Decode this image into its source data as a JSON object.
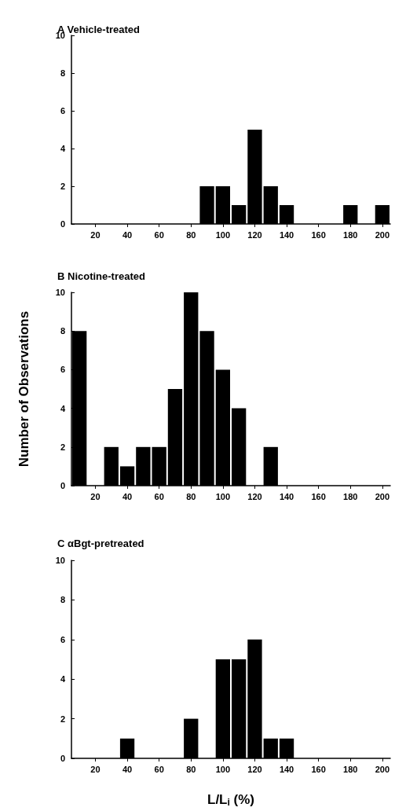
{
  "chart_data": [
    {
      "type": "histogram",
      "title": "A Vehicle-treated",
      "bins": [
        5,
        15,
        25,
        35,
        45,
        55,
        65,
        75,
        85,
        95,
        105,
        115,
        125,
        135,
        145,
        155,
        165,
        175,
        185,
        195,
        205
      ],
      "values": [
        0,
        0,
        0,
        0,
        0,
        0,
        0,
        0,
        2,
        2,
        1,
        5,
        2,
        1,
        0,
        0,
        0,
        1,
        0,
        1
      ],
      "color": "#000000",
      "xlim": [
        5,
        205
      ],
      "xticks": [
        20,
        40,
        60,
        80,
        100,
        120,
        140,
        160,
        180,
        200
      ],
      "ylim": [
        0,
        10
      ],
      "yticks": [
        0,
        2,
        4,
        6,
        8,
        10
      ],
      "grid": false
    },
    {
      "type": "histogram",
      "title": "B Nicotine-treated",
      "ylabel": "Number of Observations",
      "bins": [
        5,
        15,
        25,
        35,
        45,
        55,
        65,
        75,
        85,
        95,
        105,
        115,
        125,
        135,
        145,
        155,
        165,
        175,
        185,
        195,
        205
      ],
      "values": [
        8,
        0,
        2,
        1,
        2,
        2,
        5,
        10,
        8,
        6,
        4,
        0,
        2,
        0,
        0,
        0,
        0,
        0,
        0,
        0
      ],
      "color": "#000000",
      "xlim": [
        5,
        205
      ],
      "xticks": [
        20,
        40,
        60,
        80,
        100,
        120,
        140,
        160,
        180,
        200
      ],
      "ylim": [
        0,
        10
      ],
      "yticks": [
        0,
        2,
        4,
        6,
        8,
        10
      ],
      "grid": false
    },
    {
      "type": "histogram",
      "title": "C αBgt-pretreated",
      "xlabel": "L/L$_{i}$ (%)",
      "bins": [
        5,
        15,
        25,
        35,
        45,
        55,
        65,
        75,
        85,
        95,
        105,
        115,
        125,
        135,
        145,
        155,
        165,
        175,
        185,
        195,
        205
      ],
      "values": [
        0,
        0,
        0,
        1,
        0,
        0,
        0,
        2,
        0,
        5,
        5,
        6,
        1,
        1,
        0,
        0,
        0,
        0,
        0,
        0
      ],
      "color": "#000000",
      "xlim": [
        5,
        205
      ],
      "xticks": [
        20,
        40,
        60,
        80,
        100,
        120,
        140,
        160,
        180,
        200
      ],
      "ylim": [
        0,
        10
      ],
      "yticks": [
        0,
        2,
        4,
        6,
        8,
        10
      ],
      "grid": false
    }
  ]
}
